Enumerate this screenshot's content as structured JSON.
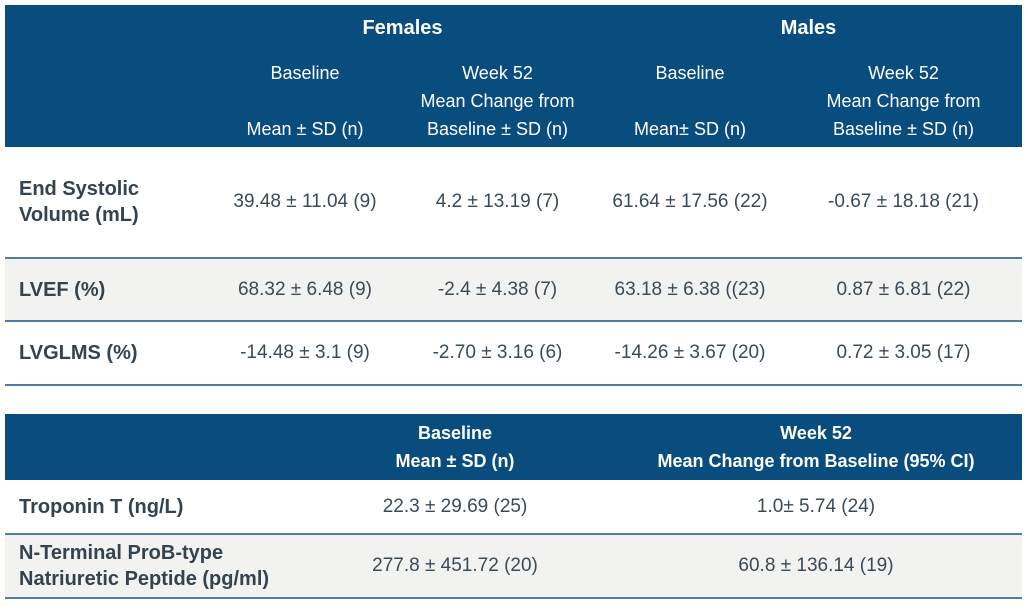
{
  "colors": {
    "header_bg": "#094C7E",
    "row_alt_bg": "#F2F2F0",
    "separator": "#4F7D9B",
    "text_dark": "#3A4A57",
    "label_dark": "#35434F",
    "header_text": "#FFFFFF"
  },
  "table1": {
    "group_headers": [
      {
        "label": "Females"
      },
      {
        "label": "Males"
      }
    ],
    "col_headers": [
      {
        "lines": [
          "Baseline",
          "",
          "Mean ± SD (n)"
        ]
      },
      {
        "lines": [
          "Week 52",
          "Mean Change from",
          "Baseline ± SD (n)"
        ]
      },
      {
        "lines": [
          "Baseline",
          "",
          "Mean± SD (n)"
        ]
      },
      {
        "lines": [
          "Week 52",
          "Mean Change from",
          "Baseline ± SD (n)"
        ]
      }
    ],
    "rows": [
      {
        "label": "End Systolic Volume (mL)",
        "values": [
          "39.48 ± 11.04 (9)",
          "4.2 ± 13.19 (7)",
          "61.64 ± 17.56 (22)",
          "-0.67 ± 18.18 (21)"
        ]
      },
      {
        "label": "LVEF (%)",
        "values": [
          "68.32 ± 6.48 (9)",
          "-2.4 ± 4.38 (7)",
          "63.18 ± 6.38 ((23)",
          "0.87 ± 6.81 (22)"
        ]
      },
      {
        "label": "LVGLMS (%)",
        "values": [
          "-14.48 ± 3.1 (9)",
          "-2.70 ± 3.16 (6)",
          "-14.26 ± 3.67 (20)",
          "0.72 ± 3.05 (17)"
        ]
      }
    ]
  },
  "table2": {
    "col_headers": [
      {
        "lines": [
          "Baseline",
          "Mean ± SD (n)"
        ]
      },
      {
        "lines": [
          "Week 52",
          "Mean Change from Baseline (95% CI)"
        ]
      }
    ],
    "rows": [
      {
        "label": "Troponin T (ng/L)",
        "values": [
          "22.3 ± 29.69 (25)",
          "1.0± 5.74 (24)"
        ]
      },
      {
        "label": "N-Terminal ProB-type Natriuretic Peptide (pg/ml)",
        "values": [
          "277.8 ± 451.72 (20)",
          "60.8 ± 136.14 (19)"
        ]
      }
    ]
  }
}
